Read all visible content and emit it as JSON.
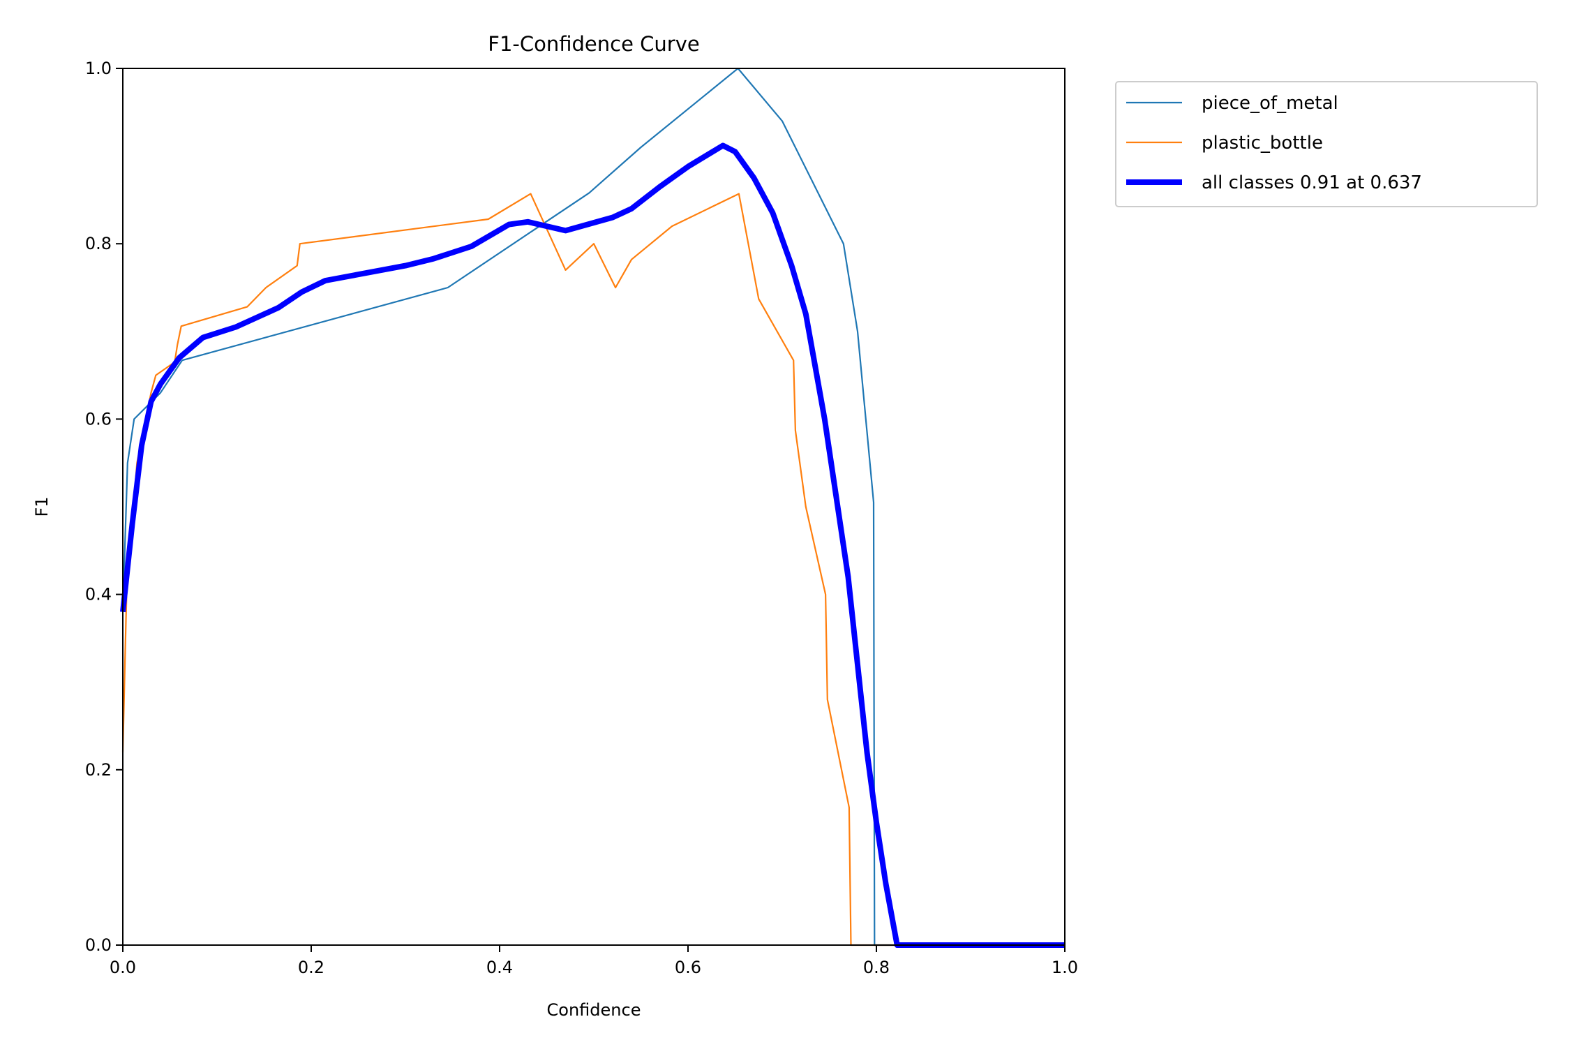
{
  "chart_data": {
    "type": "line",
    "title": "F1-Confidence Curve",
    "xlabel": "Confidence",
    "ylabel": "F1",
    "xlim": [
      0,
      1
    ],
    "ylim": [
      0,
      1
    ],
    "xticks": [
      "0.0",
      "0.2",
      "0.4",
      "0.6",
      "0.8",
      "1.0"
    ],
    "yticks": [
      "0.0",
      "0.2",
      "0.4",
      "0.6",
      "0.8",
      "1.0"
    ],
    "grid": false,
    "legend_placement": "outside-top-right",
    "series": [
      {
        "name": "piece_of_metal",
        "color": "#1f77b4",
        "points": [
          [
            0,
            0.38
          ],
          [
            0.005,
            0.55
          ],
          [
            0.012,
            0.6
          ],
          [
            0.04,
            0.63
          ],
          [
            0.063,
            0.667
          ],
          [
            0.345,
            0.75
          ],
          [
            0.495,
            0.858
          ],
          [
            0.55,
            0.91
          ],
          [
            0.653,
            1.0
          ],
          [
            0.7,
            0.94
          ],
          [
            0.765,
            0.8
          ],
          [
            0.78,
            0.7
          ],
          [
            0.797,
            0.505
          ],
          [
            0.798,
            0.0
          ],
          [
            1.0,
            0.0
          ]
        ]
      },
      {
        "name": "plastic_bottle",
        "color": "#ff7f0e",
        "points": [
          [
            0,
            0.22
          ],
          [
            0.004,
            0.4
          ],
          [
            0.015,
            0.55
          ],
          [
            0.03,
            0.63
          ],
          [
            0.035,
            0.65
          ],
          [
            0.055,
            0.665
          ],
          [
            0.058,
            0.685
          ],
          [
            0.062,
            0.706
          ],
          [
            0.132,
            0.728
          ],
          [
            0.152,
            0.75
          ],
          [
            0.185,
            0.775
          ],
          [
            0.188,
            0.8
          ],
          [
            0.388,
            0.828
          ],
          [
            0.433,
            0.857
          ],
          [
            0.47,
            0.77
          ],
          [
            0.5,
            0.8
          ],
          [
            0.523,
            0.75
          ],
          [
            0.54,
            0.782
          ],
          [
            0.583,
            0.82
          ],
          [
            0.654,
            0.857
          ],
          [
            0.675,
            0.737
          ],
          [
            0.712,
            0.667
          ],
          [
            0.714,
            0.587
          ],
          [
            0.725,
            0.5
          ],
          [
            0.746,
            0.4
          ],
          [
            0.748,
            0.28
          ],
          [
            0.771,
            0.157
          ],
          [
            0.773,
            0
          ],
          [
            1,
            0
          ]
        ]
      },
      {
        "name": "all classes 0.91 at 0.637",
        "color": "#0000ff",
        "bold": true,
        "points": [
          [
            0,
            0.38
          ],
          [
            0.01,
            0.48
          ],
          [
            0.02,
            0.57
          ],
          [
            0.03,
            0.62
          ],
          [
            0.04,
            0.64
          ],
          [
            0.06,
            0.67
          ],
          [
            0.085,
            0.693
          ],
          [
            0.12,
            0.705
          ],
          [
            0.165,
            0.727
          ],
          [
            0.19,
            0.745
          ],
          [
            0.215,
            0.758
          ],
          [
            0.3,
            0.775
          ],
          [
            0.33,
            0.783
          ],
          [
            0.37,
            0.797
          ],
          [
            0.41,
            0.822
          ],
          [
            0.43,
            0.825
          ],
          [
            0.47,
            0.815
          ],
          [
            0.52,
            0.83
          ],
          [
            0.54,
            0.84
          ],
          [
            0.57,
            0.865
          ],
          [
            0.6,
            0.888
          ],
          [
            0.637,
            0.912
          ],
          [
            0.65,
            0.905
          ],
          [
            0.67,
            0.875
          ],
          [
            0.69,
            0.835
          ],
          [
            0.71,
            0.775
          ],
          [
            0.725,
            0.72
          ],
          [
            0.735,
            0.66
          ],
          [
            0.745,
            0.6
          ],
          [
            0.77,
            0.42
          ],
          [
            0.79,
            0.22
          ],
          [
            0.8,
            0.14
          ],
          [
            0.81,
            0.07
          ],
          [
            0.822,
            0
          ],
          [
            1,
            0
          ]
        ]
      }
    ]
  }
}
